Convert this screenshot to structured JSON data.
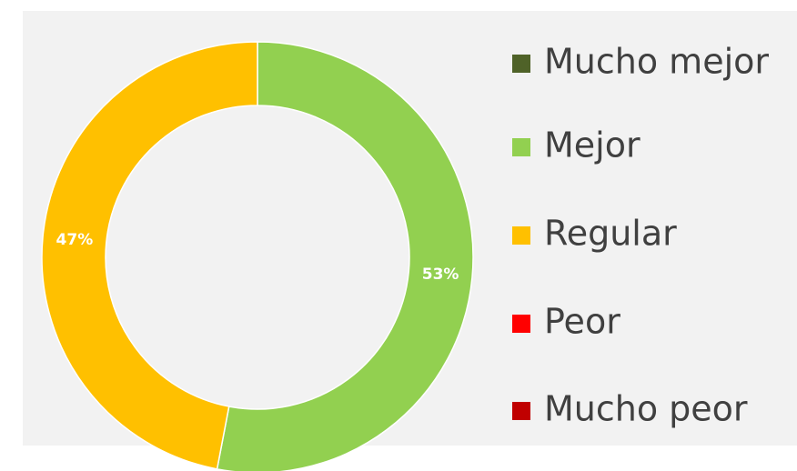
{
  "chart_data": {
    "type": "donut",
    "categories": [
      "Mucho mejor",
      "Mejor",
      "Regular",
      "Peor",
      "Mucho peor"
    ],
    "values": [
      0,
      53,
      47,
      0,
      0
    ],
    "value_labels": [
      null,
      "53%",
      "47%",
      null,
      null
    ],
    "colors": [
      "#4f6228",
      "#92d050",
      "#ffc000",
      "#ff0000",
      "#c00000"
    ],
    "legend": "right"
  }
}
